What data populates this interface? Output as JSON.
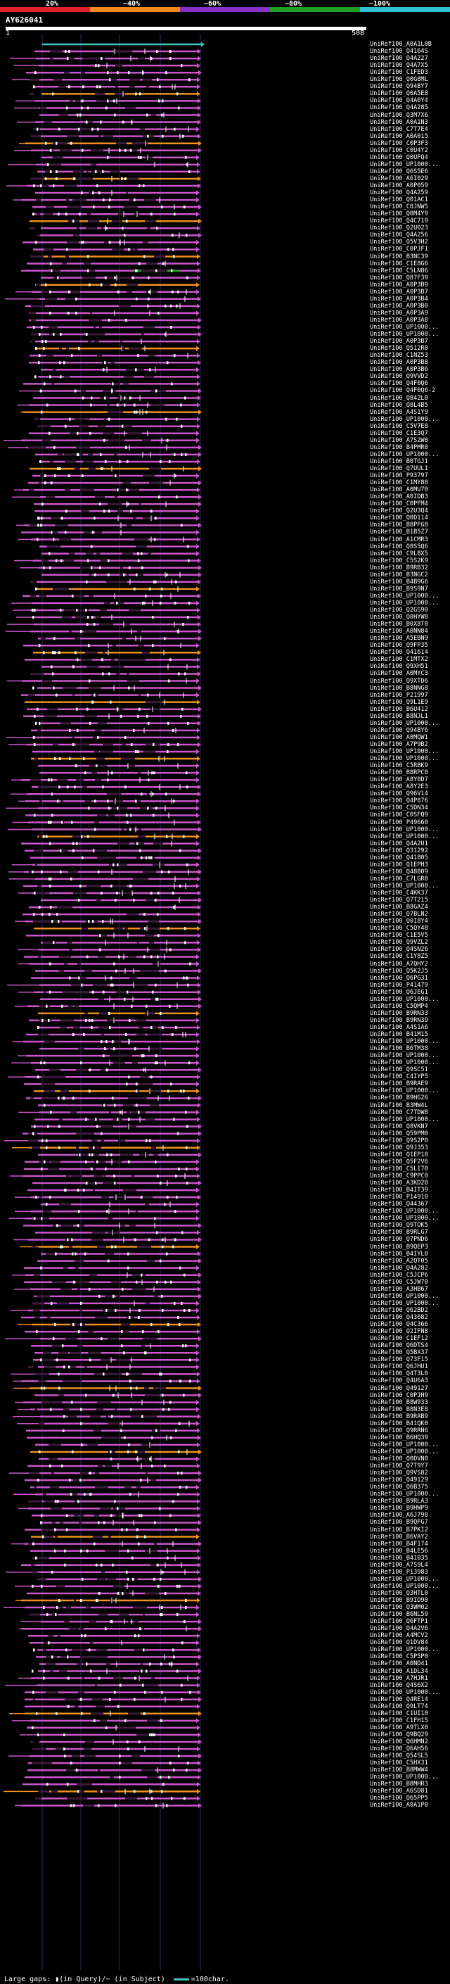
{
  "scale": {
    "ticks": [
      "20%",
      "~40%",
      "~60%",
      "~80%",
      "~100%"
    ],
    "colors": [
      "#e0202a",
      "#f08a20",
      "#8a30c8",
      "#20a020",
      "#30c0d0"
    ]
  },
  "query": {
    "name": "AY626041",
    "start": "1",
    "end": "508"
  },
  "hit_colors": {
    "main": "#cc55cc",
    "orange": "#f0901e",
    "green": "#20a020",
    "cyan": "#3ec6c6",
    "gap": "#3a1a3a"
  },
  "hit_ids": [
    "A0A1L0B",
    "Q4164S",
    "Q4A227",
    "Q4A7X5",
    "C1FED3",
    "Q0G8ML",
    "Q94BY7",
    "Q0A5E8",
    "Q4A0Y4",
    "Q4A285",
    "Q3M7X6",
    "A0A1N3",
    "C7T7E4",
    "A0A015",
    "C0P3F3",
    "C0U4Y2",
    "Q0UFQ4",
    "UP1000...",
    "Q6S5E6",
    "A6I029",
    "A0P059",
    "Q4A259",
    "Q01AC1",
    "C0JNW5",
    "Q0M4Y9",
    "Q4C719",
    "Q2U023",
    "Q4A256",
    "Q5V3H2",
    "C0PJF1",
    "B3NC39",
    "C1E8G6",
    "C5LN86",
    "Q87F39",
    "A0P3B9",
    "A0P3B7",
    "A0P3B4",
    "A0P3B0",
    "A0P3A9",
    "A0P3A8",
    "UP1000...",
    "UP1000...",
    "A0P3B7",
    "Q512R0",
    "C1NZ53",
    "A0P3B8",
    "A0P3B6",
    "Q9VVD2",
    "Q4F0Q6",
    "Q4F0Q6-2",
    "Q842L0",
    "Q8L4B5",
    "A4S1Y9",
    "UP1000...",
    "C5V7E8",
    "C1E3Q7",
    "A7S2W0",
    "B4PMR0",
    "UP1000...",
    "B0TGJ1",
    "Q7UUL1",
    "P93797",
    "C1MY88",
    "A0MU70",
    "A0IDB3",
    "C0PFM4",
    "Q2U3Q4",
    "Q0D114",
    "B8PFG8",
    "B1B5Z7",
    "A1CMR3",
    "Q8S5Q6",
    "C9LBX5",
    "C5S2K9",
    "B9RB32",
    "B3NGC2",
    "B4B9G6",
    "B9S9N7",
    "UP1000...",
    "UP1000...",
    "Q2GS90",
    "Q0HYW8",
    "B0X8T8",
    "A0NN84",
    "A5EBN9",
    "Q9FP35",
    "Q41614",
    "C1MTX2",
    "Q9XH51",
    "A0MYC3",
    "Q9XTD6",
    "B8NNG8",
    "P21997",
    "Q9L1E9",
    "B6U412",
    "B8NJL1",
    "UP1000...",
    "Q94BY6",
    "A0MQW1",
    "A7P9B2",
    "UP1000...",
    "UP1000...",
    "C5RBK9",
    "B8RPC0",
    "A8Y0D7",
    "A8Y2E3",
    "Q96V14",
    "Q4P876",
    "C5DN34",
    "C0SFQ9",
    "P49660",
    "UP1000...",
    "UP1000...",
    "Q4A2U1",
    "Q31292",
    "Q41805",
    "Q1EPH3",
    "Q48B09",
    "C7LGR0",
    "UP1000...",
    "C4KK37",
    "Q7T215",
    "B8GAZ4",
    "Q7BLN2",
    "Q0I8Y4",
    "C5QY48",
    "C1E5V5",
    "Q9VZL2",
    "Q4SN26",
    "C1Y8Z5",
    "A7QHY2",
    "Q5K2J5",
    "Q6PG31",
    "P41479",
    "Q6JEG1",
    "UP1000...",
    "C5QMP4",
    "B9RN33",
    "B9RN39",
    "A4S1A6",
    "B41M15",
    "UP1000...",
    "B6TM38",
    "UP1000...",
    "UP1000...",
    "Q9SC51",
    "C4IYP5",
    "B9RAE9",
    "UP1000...",
    "B9HG26",
    "B3MW4L",
    "C7TDW8",
    "UP1000...",
    "Q8VKN7",
    "Q59PM0",
    "Q9S2P0",
    "Q9J353",
    "Q1EP18",
    "Q5F2V6",
    "C5LI70",
    "C9PPC0",
    "A3KD20",
    "B4IT39",
    "P14910",
    "Q44367",
    "UP1000...",
    "UP1000...",
    "Q9TOK5",
    "B9RLG7",
    "Q7PND6",
    "B9QEP3",
    "B4IYL0",
    "A2QT05",
    "Q4A282",
    "C5JCP6",
    "C5JW70",
    "A3HB67",
    "UP1000...",
    "UP1000...",
    "Q62BD2",
    "Q43682",
    "Q4C366",
    "Q2IFN8",
    "C1EF12",
    "Q6DTS4",
    "Q5BX37",
    "Q73F15",
    "Q6JHU1",
    "Q4T3L0",
    "Q4U6A3",
    "Q49127",
    "C0PJH9",
    "B8W933",
    "B8N3E8",
    "B9RAB9",
    "B41QK0",
    "Q9RRN6",
    "B6HQ39",
    "UP1000...",
    "UP1000...",
    "Q0DVN0",
    "Q7T9Y7",
    "Q9VS82",
    "Q49129",
    "Q6B375",
    "UP1000...",
    "B9RLA3",
    "B9HWP9",
    "A6J790",
    "B9QFG7",
    "B7PKI2",
    "B6VAY2",
    "B4F174",
    "B4LE56",
    "B41035",
    "A7S9L4",
    "P13983",
    "UP1000...",
    "UP1000...",
    "Q3HTL0",
    "B9ID90",
    "Q3WM02",
    "B6NL59",
    "Q6FTP1",
    "Q4A2V6",
    "A4MCV2",
    "Q1DV84",
    "UP1000...",
    "C5P5P0",
    "A0ND41",
    "A1DL34",
    "A7HJR1",
    "Q4S6X2",
    "UP1000...",
    "Q4RE14",
    "Q9LT74",
    "C1UI10",
    "C1FH15",
    "A9TLX0",
    "Q9BQ29",
    "Q6HMN2",
    "Q6AH56",
    "Q54SL5",
    "C5HX31",
    "B8MWW4",
    "UP1000...",
    "B8MHR3",
    "A6SD81",
    "Q65PP5",
    "A0A1P0"
  ],
  "legend": {
    "text": "Large gaps: ▮(in Query)/~ (in Subject)",
    "unit": "=100char."
  }
}
